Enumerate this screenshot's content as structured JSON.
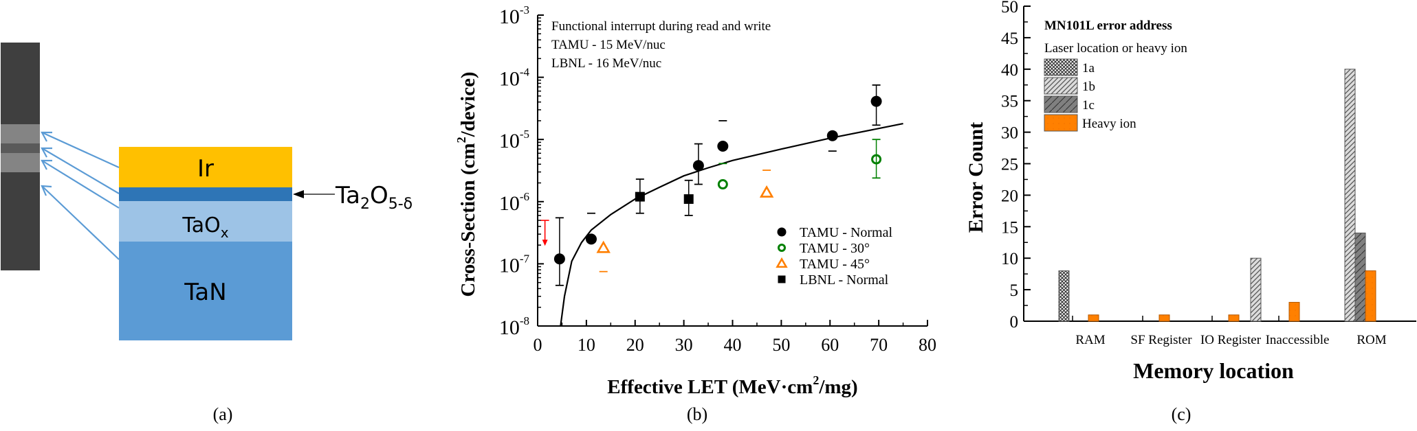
{
  "panels": {
    "a": {
      "caption": "(a)",
      "layers": [
        {
          "name": "Ir",
          "color": "#FFC000"
        },
        {
          "name": "",
          "color": "#2E75B6"
        },
        {
          "name": "TaOx",
          "label_main": "TaO",
          "label_sub": "x",
          "color": "#9DC3E6"
        },
        {
          "name": "TaN",
          "color": "#5B9BD5"
        }
      ],
      "annotation": {
        "main": "Ta",
        "sub1": "2",
        "mid": "O",
        "sub2": "5-δ"
      },
      "arrow_color": "#5B9BD5",
      "tem_colors": {
        "dark": "#3f3f3f",
        "bright": "#8c8c8c",
        "mid": "#5a5a5a"
      }
    },
    "b": {
      "caption": "(b)"
    },
    "c": {
      "caption": "(c)"
    }
  },
  "chart_data": [
    {
      "type": "scatter",
      "title": "",
      "xlabel": "Effective LET (MeV·cm²/mg)",
      "xlabel_parts": {
        "pre": "Effective LET (MeV·cm",
        "sup": "2",
        "post": "/mg)"
      },
      "ylabel": "Cross-Section (cm²/device)",
      "ylabel_parts": {
        "pre": "Cross-Section (cm",
        "sup": "2",
        "post": "/device)"
      },
      "xlim": [
        0,
        80
      ],
      "ylim": [
        1e-08,
        0.001
      ],
      "yscale": "log",
      "xticks": [
        0,
        10,
        20,
        30,
        40,
        50,
        60,
        70,
        80
      ],
      "yticks": [
        {
          "base": "10",
          "exp": "-8"
        },
        {
          "base": "10",
          "exp": "-7"
        },
        {
          "base": "10",
          "exp": "-6"
        },
        {
          "base": "10",
          "exp": "-5"
        },
        {
          "base": "10",
          "exp": "-4"
        },
        {
          "base": "10",
          "exp": "-3"
        }
      ],
      "annotations": [
        "Functional interrupt during read and write",
        "TAMU - 15 MeV/nuc",
        "LBNL - 16 MeV/nuc"
      ],
      "legend_position": "bottom-right",
      "series": [
        {
          "name": "TAMU - Normal",
          "marker": "filled-circle",
          "color": "#000000",
          "points": [
            {
              "x": 4.5,
              "y": 1.2e-07,
              "lo": 4.5e-08,
              "hi": 5.5e-07
            },
            {
              "x": 11,
              "y": 2.5e-07,
              "lo": null,
              "hi": 6.5e-07
            },
            {
              "x": 33,
              "y": 3.8e-06,
              "lo": 1.9e-06,
              "hi": 8.5e-06
            },
            {
              "x": 38,
              "y": 7.8e-06,
              "lo": null,
              "hi": 2e-05
            },
            {
              "x": 60.5,
              "y": 1.15e-05,
              "lo": 6.5e-06,
              "hi": null
            },
            {
              "x": 69.5,
              "y": 4.1e-05,
              "lo": 1.7e-05,
              "hi": 7.5e-05
            }
          ]
        },
        {
          "name": "TAMU - 30°",
          "marker": "open-circle",
          "color": "#008000",
          "points": [
            {
              "x": 38,
              "y": 1.9e-06,
              "lo": null,
              "hi": 4.1e-06
            },
            {
              "x": 69.5,
              "y": 4.8e-06,
              "lo": 2.4e-06,
              "hi": 1e-05
            }
          ]
        },
        {
          "name": "TAMU - 45°",
          "marker": "open-triangle",
          "color": "#FF7F00",
          "points": [
            {
              "x": 13.5,
              "y": 1.8e-07,
              "lo": 7.5e-08,
              "hi": null
            },
            {
              "x": 47,
              "y": 1.4e-06,
              "lo": null,
              "hi": 3.2e-06
            }
          ]
        },
        {
          "name": "LBNL - Normal",
          "marker": "filled-square",
          "color": "#000000",
          "points": [
            {
              "x": 21,
              "y": 1.2e-06,
              "lo": 6.5e-07,
              "hi": 2.3e-06
            },
            {
              "x": 31,
              "y": 1.1e-06,
              "lo": 6e-07,
              "hi": 2.2e-06
            }
          ]
        }
      ],
      "upper_limit_marker": {
        "x": 1.5,
        "y_top": 5e-07,
        "y_bottom": 2.1e-07,
        "color": "#FF0000"
      },
      "fit_curve": {
        "description": "Weibull-like fit",
        "x_start": 4.7,
        "x_end": 75,
        "points": [
          [
            4.7,
            1e-08
          ],
          [
            5.5,
            3e-08
          ],
          [
            7,
            1.1e-07
          ],
          [
            9,
            2.2e-07
          ],
          [
            11,
            3.5e-07
          ],
          [
            15,
            6.2e-07
          ],
          [
            20,
            1.1e-06
          ],
          [
            25,
            1.7e-06
          ],
          [
            30,
            2.6e-06
          ],
          [
            35,
            3.5e-06
          ],
          [
            40,
            4.6e-06
          ],
          [
            50,
            7e-06
          ],
          [
            60,
            1.05e-05
          ],
          [
            70,
            1.5e-05
          ],
          [
            75,
            1.8e-05
          ]
        ]
      }
    },
    {
      "type": "bar",
      "title": "MN101L error address",
      "legend_title": "Laser location or heavy ion",
      "xlabel": "Memory location",
      "ylabel": "Error Count",
      "ylim": [
        0,
        50
      ],
      "yticks": [
        0,
        5,
        10,
        15,
        20,
        25,
        30,
        35,
        40,
        45,
        50
      ],
      "categories": [
        "RAM",
        "SF Register",
        "IO Register",
        "Inaccessible",
        "ROM"
      ],
      "legend_position": "top-left",
      "series": [
        {
          "name": "1a",
          "pattern": "crosshatch",
          "color": "#888888",
          "values": [
            8,
            0,
            0,
            0,
            0
          ]
        },
        {
          "name": "1b",
          "pattern": "light-diagonal",
          "color": "#d9d9d9",
          "values": [
            0,
            0,
            0,
            10,
            40
          ]
        },
        {
          "name": "1c",
          "pattern": "dark-diagonal",
          "color": "#808080",
          "values": [
            0,
            0,
            0,
            0,
            14
          ]
        },
        {
          "name": "Heavy ion",
          "pattern": "solid",
          "color": "#FF8000",
          "values": [
            1,
            1,
            1,
            3,
            8
          ]
        }
      ]
    }
  ]
}
